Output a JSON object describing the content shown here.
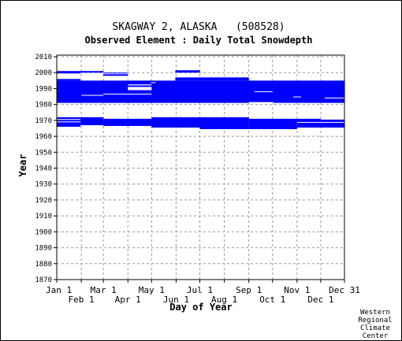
{
  "chart_data": {
    "type": "bar",
    "title": "SKAGWAY 2, ALASKA   (508528)",
    "subtitle": "Observed Element : Daily Total Snowdepth",
    "xlabel": "Day of Year",
    "ylabel": "Year",
    "x_ticks_upper": [
      {
        "label": "Jan 1",
        "day": 1
      },
      {
        "label": "Mar 1",
        "day": 60
      },
      {
        "label": "May 1",
        "day": 121
      },
      {
        "label": "Jul 1",
        "day": 182
      },
      {
        "label": "Sep 1",
        "day": 244
      },
      {
        "label": "Nov 1",
        "day": 305
      },
      {
        "label": "Dec 31",
        "day": 365
      }
    ],
    "x_ticks_lower": [
      {
        "label": "Feb 1",
        "day": 32
      },
      {
        "label": "Apr 1",
        "day": 91
      },
      {
        "label": "Jun 1",
        "day": 152
      },
      {
        "label": "Aug 1",
        "day": 213
      },
      {
        "label": "Oct 1",
        "day": 274
      },
      {
        "label": "Dec 1",
        "day": 335
      }
    ],
    "y_ticks": [
      2010,
      2000,
      1990,
      1980,
      1970,
      1960,
      1950,
      1940,
      1930,
      1920,
      1910,
      1900,
      1890,
      1880,
      1870
    ],
    "xlim": [
      1,
      365
    ],
    "ylim": [
      1870,
      2011
    ],
    "grid": true,
    "bar_color": "#0000ff",
    "series": [
      {
        "values": [
          {
            "y0": 1981.0,
            "y1": 1995.0,
            "x0": 1,
            "x1": 365
          },
          {
            "y0": 1995.0,
            "y1": 1996.0,
            "x0": 1,
            "x1": 31
          },
          {
            "y0": 1995.0,
            "y1": 1997.0,
            "x0": 151,
            "x1": 244
          },
          {
            "y0": 1999.5,
            "y1": 2001.0,
            "x0": 1,
            "x1": 31
          },
          {
            "y0": 2000.0,
            "y1": 2001.0,
            "x0": 31,
            "x1": 60
          },
          {
            "y0": 1998.0,
            "y1": 1999.0,
            "x0": 60,
            "x1": 91
          },
          {
            "y0": 1999.5,
            "y1": 2000.0,
            "x0": 60,
            "x1": 91
          },
          {
            "y0": 2000.0,
            "y1": 2001.5,
            "x0": 151,
            "x1": 182
          },
          {
            "y0": 1966.0,
            "y1": 1972.0,
            "x0": 1,
            "x1": 31
          },
          {
            "y0": 1967.0,
            "y1": 1972.0,
            "x0": 31,
            "x1": 60
          },
          {
            "y0": 1966.5,
            "y1": 1971.0,
            "x0": 60,
            "x1": 121
          },
          {
            "y0": 1965.5,
            "y1": 1972.0,
            "x0": 121,
            "x1": 182
          },
          {
            "y0": 1964.5,
            "y1": 1972.0,
            "x0": 182,
            "x1": 244
          },
          {
            "y0": 1964.5,
            "y1": 1971.0,
            "x0": 244,
            "x1": 305
          },
          {
            "y0": 1965.5,
            "y1": 1971.0,
            "x0": 305,
            "x1": 335
          },
          {
            "y0": 1965.5,
            "y1": 1970.5,
            "x0": 335,
            "x1": 365
          }
        ]
      }
    ],
    "gaps": [
      {
        "y0": 1968.8,
        "y1": 1969.3,
        "x0": 1,
        "x1": 31
      },
      {
        "y0": 1970.3,
        "y1": 1970.8,
        "x0": 1,
        "x1": 31
      },
      {
        "y0": 1968.5,
        "y1": 1969.0,
        "x0": 305,
        "x1": 365
      },
      {
        "y0": 1985.5,
        "y1": 1986.0,
        "x0": 32,
        "x1": 60
      },
      {
        "y0": 1986.3,
        "y1": 1986.8,
        "x0": 60,
        "x1": 121
      },
      {
        "y0": 1989.0,
        "y1": 1991.0,
        "x0": 91,
        "x1": 121
      },
      {
        "y0": 1992.0,
        "y1": 1992.6,
        "x0": 91,
        "x1": 121
      },
      {
        "y0": 1987.8,
        "y1": 1988.3,
        "x0": 251,
        "x1": 274
      },
      {
        "y0": 1984.5,
        "y1": 1985.0,
        "x0": 300,
        "x1": 310
      },
      {
        "y0": 1983.8,
        "y1": 1984.3,
        "x0": 340,
        "x1": 365
      },
      {
        "y0": 1980.8,
        "y1": 1981.5,
        "x0": 244,
        "x1": 275
      },
      {
        "y0": 1993.5,
        "y1": 1994.0,
        "x0": 120,
        "x1": 126
      }
    ],
    "credit": [
      "Western",
      "Regional",
      "Climate",
      "Center"
    ]
  }
}
